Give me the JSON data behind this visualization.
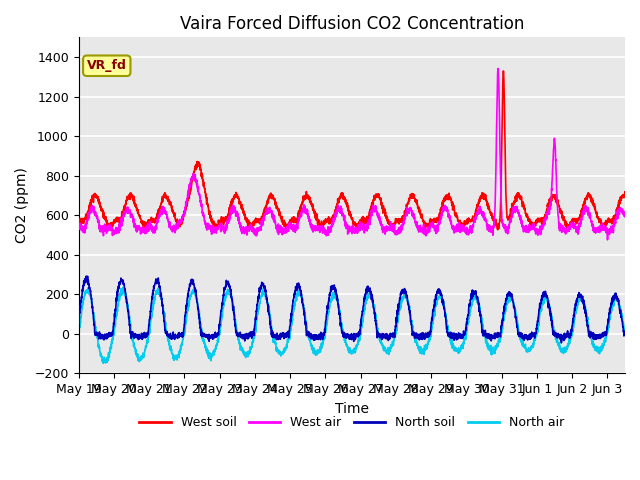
{
  "title": "Vaira Forced Diffusion CO2 Concentration",
  "xlabel": "Time",
  "ylabel": "CO2 (ppm)",
  "ylim": [
    -200,
    1500
  ],
  "xlim": [
    0,
    15.5
  ],
  "background_color": "#e8e8e8",
  "grid_color": "#ffffff",
  "legend_labels": [
    "West soil",
    "West air",
    "North soil",
    "North air"
  ],
  "legend_colors": [
    "#ff0000",
    "#ff00ff",
    "#0000bb",
    "#00ccee"
  ],
  "annotation_text": "VR_fd",
  "annotation_color": "#8b0000",
  "annotation_bg": "#ffff99",
  "annotation_edge": "#999900",
  "xtick_labels": [
    "May 19",
    "May 20",
    "May 21",
    "May 22",
    "May 23",
    "May 24",
    "May 25",
    "May 26",
    "May 27",
    "May 28",
    "May 29",
    "May 30",
    "May 31",
    "Jun 1",
    "Jun 2",
    "Jun 3"
  ],
  "xtick_positions": [
    0,
    1,
    2,
    3,
    4,
    5,
    6,
    7,
    8,
    9,
    10,
    11,
    12,
    13,
    14,
    15
  ]
}
